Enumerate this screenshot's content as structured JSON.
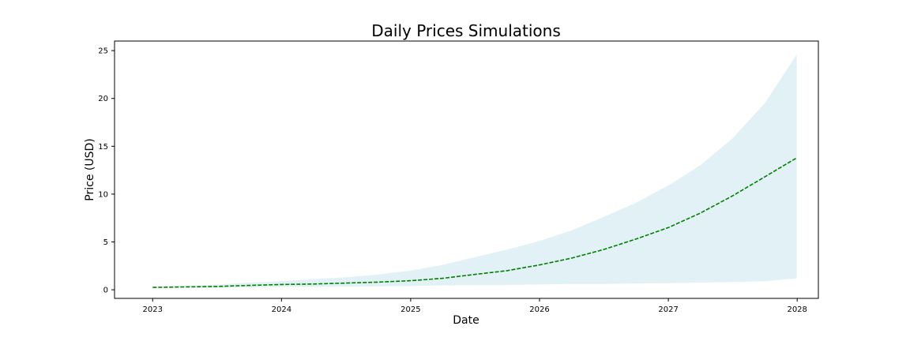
{
  "chart_data": {
    "type": "line",
    "title": "Daily Prices Simulations",
    "xlabel": "Date",
    "ylabel": "Price (USD)",
    "x_ticks": [
      "2023",
      "2024",
      "2025",
      "2026",
      "2027",
      "2028"
    ],
    "y_ticks": [
      0,
      5,
      10,
      15,
      20,
      25
    ],
    "xlim": [
      "2022-09-15",
      "2028-03-01"
    ],
    "ylim": [
      -0.9,
      26
    ],
    "grid": false,
    "colors": {
      "mean_line": "#008000",
      "band": "#add8e6",
      "band_opacity": 0.35,
      "frame": "#000000"
    },
    "mean_series": {
      "style": "dashed",
      "x": [
        "2023-01-01",
        "2023-04-01",
        "2023-07-01",
        "2023-10-01",
        "2024-01-01",
        "2024-04-01",
        "2024-07-01",
        "2024-10-01",
        "2025-01-01",
        "2025-04-01",
        "2025-07-01",
        "2025-10-01",
        "2026-01-01",
        "2026-04-01",
        "2026-07-01",
        "2026-10-01",
        "2027-01-01",
        "2027-04-01",
        "2027-07-01",
        "2027-10-01",
        "2027-12-31"
      ],
      "y": [
        0.25,
        0.3,
        0.35,
        0.45,
        0.55,
        0.6,
        0.7,
        0.8,
        0.95,
        1.2,
        1.6,
        2.0,
        2.6,
        3.3,
        4.2,
        5.3,
        6.5,
        8.0,
        9.8,
        11.8,
        13.8
      ]
    },
    "band": {
      "x": [
        "2023-01-01",
        "2023-04-01",
        "2023-07-01",
        "2023-10-01",
        "2024-01-01",
        "2024-04-01",
        "2024-07-01",
        "2024-10-01",
        "2025-01-01",
        "2025-04-01",
        "2025-07-01",
        "2025-10-01",
        "2026-01-01",
        "2026-04-01",
        "2026-07-01",
        "2026-10-01",
        "2027-01-01",
        "2027-04-01",
        "2027-07-01",
        "2027-10-01",
        "2027-12-31"
      ],
      "lower": [
        0.22,
        0.22,
        0.22,
        0.25,
        0.3,
        0.3,
        0.32,
        0.35,
        0.4,
        0.45,
        0.5,
        0.5,
        0.55,
        0.6,
        0.6,
        0.65,
        0.7,
        0.75,
        0.8,
        0.9,
        1.2
      ],
      "upper": [
        0.28,
        0.4,
        0.55,
        0.75,
        0.9,
        1.1,
        1.3,
        1.6,
        2.0,
        2.6,
        3.4,
        4.2,
        5.1,
        6.2,
        7.6,
        9.1,
        10.9,
        13.0,
        15.8,
        19.5,
        24.6
      ]
    }
  }
}
